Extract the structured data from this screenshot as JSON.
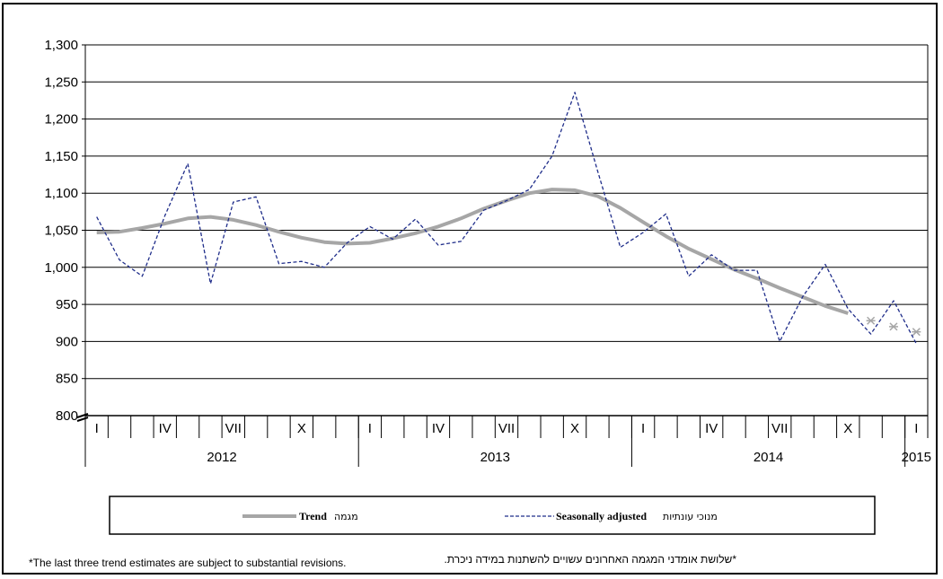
{
  "chart_data": {
    "type": "line",
    "title": "",
    "xlabel": "",
    "ylabel": "",
    "ylim": [
      800,
      1300
    ],
    "yticks": [
      800,
      850,
      900,
      950,
      "1,000",
      "1,050",
      "1,100",
      "1,150",
      "1,200",
      "1,250",
      "1,300"
    ],
    "axis_break": true,
    "grid": true,
    "periods": [
      "Jan 2012",
      "Feb 2012",
      "Mar 2012",
      "Apr 2012",
      "May 2012",
      "Jun 2012",
      "Jul 2012",
      "Aug 2012",
      "Sep 2012",
      "Oct 2012",
      "Nov 2012",
      "Dec 2012",
      "Jan 2013",
      "Feb 2013",
      "Mar 2013",
      "Apr 2013",
      "May 2013",
      "Jun 2013",
      "Jul 2013",
      "Aug 2013",
      "Sep 2013",
      "Oct 2013",
      "Nov 2013",
      "Dec 2013",
      "Jan 2014",
      "Feb 2014",
      "Mar 2014",
      "Apr 2014",
      "May 2014",
      "Jun 2014",
      "Jul 2014",
      "Aug 2014",
      "Sep 2014",
      "Oct 2014",
      "Nov 2014",
      "Dec 2014",
      "Jan 2015"
    ],
    "month_labels": [
      {
        "index": 0,
        "label": "I"
      },
      {
        "index": 3,
        "label": "IV"
      },
      {
        "index": 6,
        "label": "VII"
      },
      {
        "index": 9,
        "label": "X"
      },
      {
        "index": 12,
        "label": "I"
      },
      {
        "index": 15,
        "label": "IV"
      },
      {
        "index": 18,
        "label": "VII"
      },
      {
        "index": 21,
        "label": "X"
      },
      {
        "index": 24,
        "label": "I"
      },
      {
        "index": 27,
        "label": "IV"
      },
      {
        "index": 30,
        "label": "VII"
      },
      {
        "index": 33,
        "label": "X"
      },
      {
        "index": 36,
        "label": "I"
      }
    ],
    "years": [
      {
        "label": "2012",
        "start": 0,
        "end": 12
      },
      {
        "label": "2013",
        "start": 12,
        "end": 24
      },
      {
        "label": "2014",
        "start": 24,
        "end": 36
      },
      {
        "label": "2015",
        "start": 36,
        "end": 37
      }
    ],
    "series": [
      {
        "name": "Trend מגמה",
        "color": "#a6a6a6",
        "style": "solid",
        "values": [
          1047,
          1048,
          1053,
          1059,
          1066,
          1068,
          1064,
          1057,
          1048,
          1040,
          1034,
          1032,
          1033,
          1039,
          1046,
          1055,
          1066,
          1079,
          1090,
          1100,
          1105,
          1104,
          1096,
          1080,
          1061,
          1042,
          1025,
          1011,
          997,
          985,
          972,
          960,
          948,
          938,
          null,
          null,
          null
        ],
        "provisional": [
          {
            "index": 34,
            "value": 928
          },
          {
            "index": 35,
            "value": 920
          },
          {
            "index": 36,
            "value": 913
          }
        ]
      },
      {
        "name": "Seasonally adjusted מנוכי עונתיות",
        "color": "#1f2d8a",
        "style": "dashed",
        "values": [
          1068,
          1010,
          988,
          1070,
          1140,
          978,
          1088,
          1095,
          1005,
          1008,
          1000,
          1033,
          1055,
          1038,
          1065,
          1030,
          1035,
          1077,
          1090,
          1105,
          1150,
          1236,
          1130,
          1027,
          1047,
          1072,
          988,
          1017,
          996,
          996,
          900,
          960,
          1004,
          944,
          910,
          955,
          897
        ]
      }
    ]
  },
  "legend": {
    "trend_label_en": "Trend",
    "trend_label_he": "מגמה",
    "sa_label_en": "Seasonally adjusted",
    "sa_label_he": "מנוכי עונתיות"
  },
  "footer": {
    "note_en": "*The last three trend estimates are subject to substantial revisions.",
    "note_he": "*שלושת אומדני המגמה האחרונים עשויים להשתנות במידה ניכרת."
  }
}
